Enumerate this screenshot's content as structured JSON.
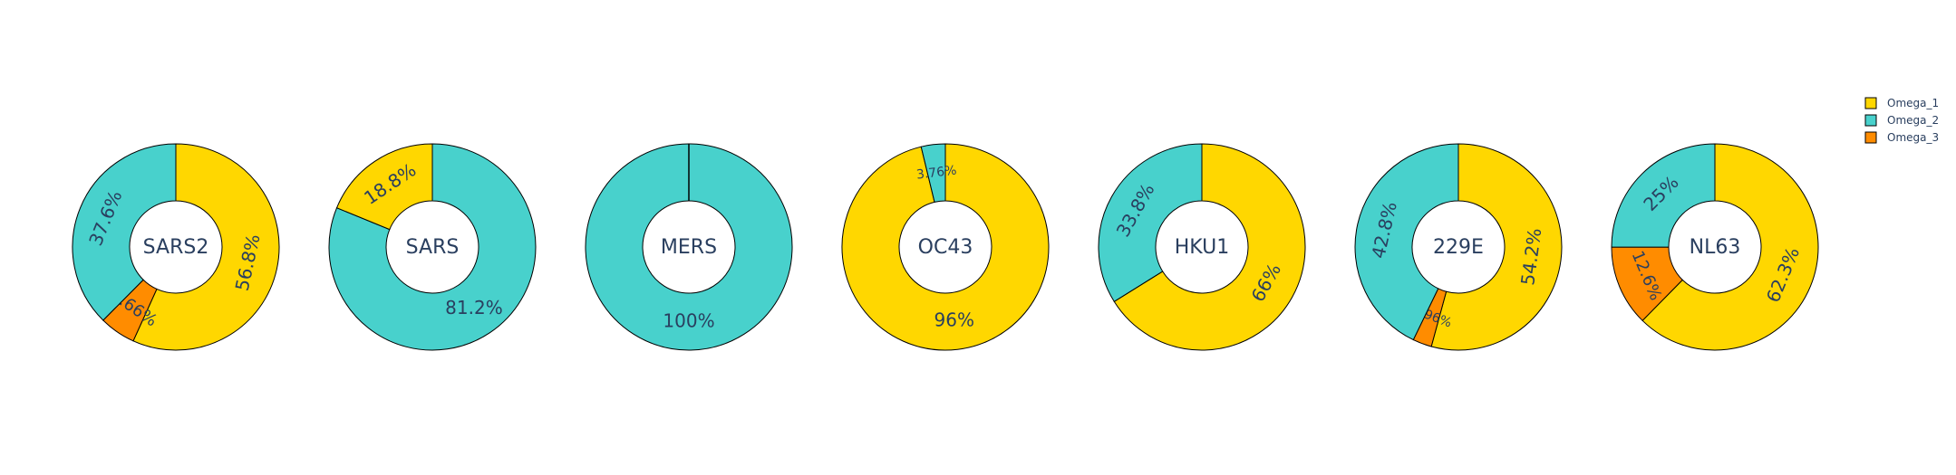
{
  "colors": {
    "Omega_1": "#FFD700",
    "Omega_2": "#48D1CC",
    "Omega_3": "#FF8C00",
    "text": "#2a3f5f",
    "slice_border": "#000000"
  },
  "chart_data": {
    "type": "pie",
    "variant": "donut",
    "legend": {
      "placement": "top-right",
      "entries": [
        "Omega_1",
        "Omega_2",
        "Omega_3"
      ]
    },
    "donuts": [
      {
        "name": "SARS2",
        "slices": [
          {
            "label": "Omega_1",
            "value": 56.8,
            "text": "56.8%"
          },
          {
            "label": "Omega_3",
            "value": 5.66,
            "text": "5.66%"
          },
          {
            "label": "Omega_2",
            "value": 37.6,
            "text": "37.6%"
          }
        ]
      },
      {
        "name": "SARS",
        "slices": [
          {
            "label": "Omega_2",
            "value": 81.2,
            "text": "81.2%"
          },
          {
            "label": "Omega_1",
            "value": 18.8,
            "text": "18.8%"
          }
        ]
      },
      {
        "name": "MERS",
        "slices": [
          {
            "label": "Omega_2",
            "value": 100,
            "text": "100%"
          }
        ]
      },
      {
        "name": "OC43",
        "slices": [
          {
            "label": "Omega_1",
            "value": 96,
            "text": "96%"
          },
          {
            "label": "Omega_2",
            "value": 3.76,
            "text": "3.76%"
          }
        ]
      },
      {
        "name": "HKU1",
        "slices": [
          {
            "label": "Omega_1",
            "value": 66,
            "text": "66%"
          },
          {
            "label": "Omega_2",
            "value": 33.8,
            "text": "33.8%"
          }
        ]
      },
      {
        "name": "229E",
        "slices": [
          {
            "label": "Omega_1",
            "value": 54.2,
            "text": "54.2%"
          },
          {
            "label": "Omega_3",
            "value": 2.96,
            "text": "2.96%"
          },
          {
            "label": "Omega_2",
            "value": 42.8,
            "text": "42.8%"
          }
        ]
      },
      {
        "name": "NL63",
        "slices": [
          {
            "label": "Omega_1",
            "value": 62.3,
            "text": "62.3%"
          },
          {
            "label": "Omega_3",
            "value": 12.6,
            "text": "12.6%"
          },
          {
            "label": "Omega_2",
            "value": 25,
            "text": "25%"
          }
        ]
      }
    ]
  }
}
